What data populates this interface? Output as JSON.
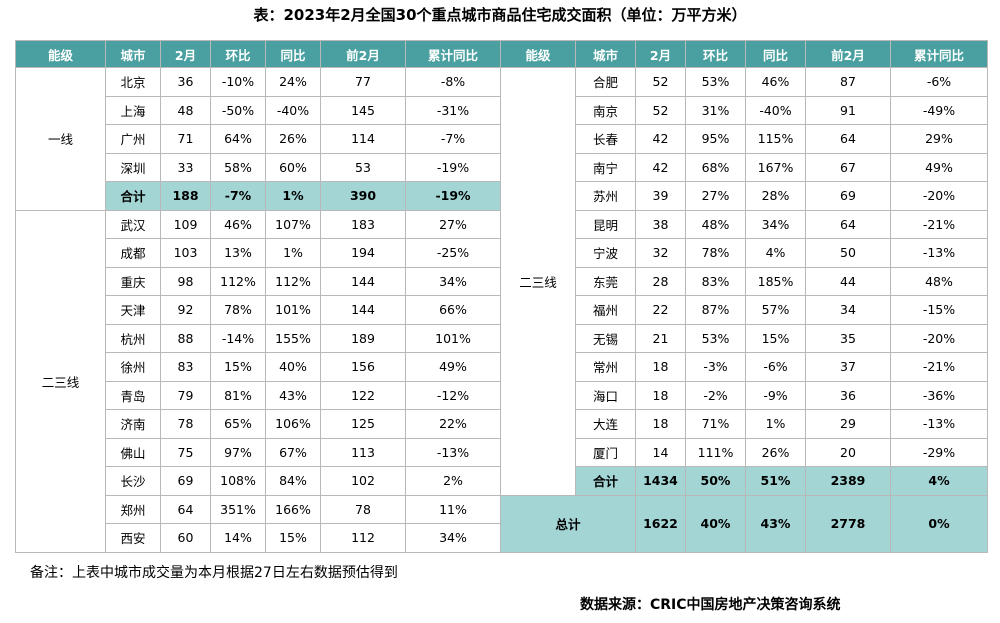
{
  "title": "表：2023年2月全国30个重点城市商品住宅成交面积（单位：万平方米）",
  "header": [
    "能级",
    "城市",
    "2月",
    "环比",
    "同比",
    "前2月",
    "累计同比"
  ],
  "left": {
    "groups": [
      {
        "tier": "一线",
        "rows": [
          [
            "北京",
            "36",
            "-10%",
            "24%",
            "77",
            "-8%"
          ],
          [
            "上海",
            "48",
            "-50%",
            "-40%",
            "145",
            "-31%"
          ],
          [
            "广州",
            "71",
            "64%",
            "26%",
            "114",
            "-7%"
          ],
          [
            "深圳",
            "33",
            "58%",
            "60%",
            "53",
            "-19%"
          ]
        ],
        "subtotal": [
          "合计",
          "188",
          "-7%",
          "1%",
          "390",
          "-19%"
        ]
      },
      {
        "tier": "二三线",
        "rows": [
          [
            "武汉",
            "109",
            "46%",
            "107%",
            "183",
            "27%"
          ],
          [
            "成都",
            "103",
            "13%",
            "1%",
            "194",
            "-25%"
          ],
          [
            "重庆",
            "98",
            "112%",
            "112%",
            "144",
            "34%"
          ],
          [
            "天津",
            "92",
            "78%",
            "101%",
            "144",
            "66%"
          ],
          [
            "杭州",
            "88",
            "-14%",
            "155%",
            "189",
            "101%"
          ],
          [
            "徐州",
            "83",
            "15%",
            "40%",
            "156",
            "49%"
          ],
          [
            "青岛",
            "79",
            "81%",
            "43%",
            "122",
            "-12%"
          ],
          [
            "济南",
            "78",
            "65%",
            "106%",
            "125",
            "22%"
          ],
          [
            "佛山",
            "75",
            "97%",
            "67%",
            "113",
            "-13%"
          ],
          [
            "长沙",
            "69",
            "108%",
            "84%",
            "102",
            "2%"
          ],
          [
            "郑州",
            "64",
            "351%",
            "166%",
            "78",
            "11%"
          ],
          [
            "西安",
            "60",
            "14%",
            "15%",
            "112",
            "34%"
          ]
        ]
      }
    ]
  },
  "right": {
    "groups": [
      {
        "tier": "二三线",
        "rows": [
          [
            "合肥",
            "52",
            "53%",
            "46%",
            "87",
            "-6%"
          ],
          [
            "南京",
            "52",
            "31%",
            "-40%",
            "91",
            "-49%"
          ],
          [
            "长春",
            "42",
            "95%",
            "115%",
            "64",
            "29%"
          ],
          [
            "南宁",
            "42",
            "68%",
            "167%",
            "67",
            "49%"
          ],
          [
            "苏州",
            "39",
            "27%",
            "28%",
            "69",
            "-20%"
          ],
          [
            "昆明",
            "38",
            "48%",
            "34%",
            "64",
            "-21%"
          ],
          [
            "宁波",
            "32",
            "78%",
            "4%",
            "50",
            "-13%"
          ],
          [
            "东莞",
            "28",
            "83%",
            "185%",
            "44",
            "48%"
          ],
          [
            "福州",
            "22",
            "87%",
            "57%",
            "34",
            "-15%"
          ],
          [
            "无锡",
            "21",
            "53%",
            "15%",
            "35",
            "-20%"
          ],
          [
            "常州",
            "18",
            "-3%",
            "-6%",
            "37",
            "-21%"
          ],
          [
            "海口",
            "18",
            "-2%",
            "-9%",
            "36",
            "-36%"
          ],
          [
            "大连",
            "18",
            "71%",
            "1%",
            "29",
            "-13%"
          ],
          [
            "厦门",
            "14",
            "111%",
            "26%",
            "20",
            "-29%"
          ]
        ],
        "subtotal": [
          "合计",
          "1434",
          "50%",
          "51%",
          "2389",
          "4%"
        ]
      }
    ],
    "total": [
      "总计",
      "1622",
      "40%",
      "43%",
      "2778",
      "0%"
    ]
  },
  "note": "备注：上表中城市成交量为本月根据27日左右数据预估得到",
  "source": "数据来源：CRIC中国房地产决策咨询系统"
}
